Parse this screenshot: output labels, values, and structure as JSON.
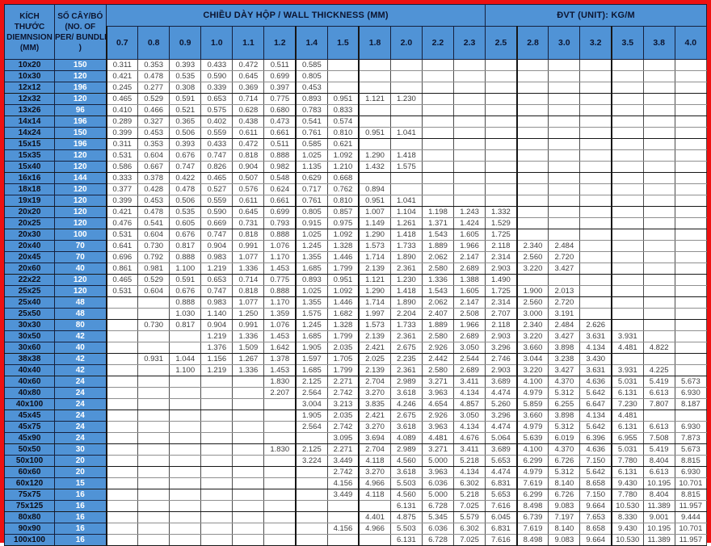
{
  "title": "Steel box tube weight table",
  "colors": {
    "header_blue": "#5093d6",
    "frame_red": "#ee1111",
    "bundle_text": "#ffffff",
    "data_text": "#3c3c3c"
  },
  "header": {
    "dimension_col": {
      "lines": [
        "KÍCH",
        "THƯỚC",
        "DIEMNSION",
        "(MM)"
      ]
    },
    "bundle_col": {
      "lines": [
        "SỐ CÂY/BÓ",
        "(NO. OF",
        "PER/ BUNDLE",
        ")"
      ]
    },
    "wall_thickness_label": "CHIỀU DÀY HỘP / WALL THICKNESS (MM)",
    "unit_label": "ĐVT (UNIT): KG/M",
    "thicknesses": [
      "0.7",
      "0.8",
      "0.9",
      "1.0",
      "1.1",
      "1.2",
      "1.4",
      "1.5",
      "1.8",
      "2.0",
      "2.2",
      "2.3",
      "2.5",
      "2.8",
      "3.0",
      "3.2",
      "3.5",
      "3.8",
      "4.0"
    ]
  },
  "layout": {
    "group_end_rows": [
      2,
      4,
      6,
      9,
      12,
      14,
      18,
      20,
      22,
      25,
      27,
      30,
      33,
      35,
      37,
      39
    ],
    "group_start_cols": [
      0,
      6,
      8,
      13,
      16
    ]
  },
  "rows": [
    {
      "dim": "10x20",
      "bundle": "150",
      "values": [
        "0.311",
        "0.353",
        "0.393",
        "0.433",
        "0.472",
        "0.511",
        "0.585",
        "",
        "",
        "",
        "",
        "",
        "",
        "",
        "",
        "",
        "",
        "",
        ""
      ]
    },
    {
      "dim": "10x30",
      "bundle": "120",
      "values": [
        "0.421",
        "0.478",
        "0.535",
        "0.590",
        "0.645",
        "0.699",
        "0.805",
        "",
        "",
        "",
        "",
        "",
        "",
        "",
        "",
        "",
        "",
        "",
        ""
      ]
    },
    {
      "dim": "12x12",
      "bundle": "196",
      "values": [
        "0.245",
        "0.277",
        "0.308",
        "0.339",
        "0.369",
        "0.397",
        "0.453",
        "",
        "",
        "",
        "",
        "",
        "",
        "",
        "",
        "",
        "",
        "",
        ""
      ]
    },
    {
      "dim": "12x32",
      "bundle": "120",
      "values": [
        "0.465",
        "0.529",
        "0.591",
        "0.653",
        "0.714",
        "0.775",
        "0.893",
        "0.951",
        "1.121",
        "1.230",
        "",
        "",
        "",
        "",
        "",
        "",
        "",
        "",
        ""
      ]
    },
    {
      "dim": "13x26",
      "bundle": "96",
      "values": [
        "0.410",
        "0.466",
        "0.521",
        "0.575",
        "0.628",
        "0.680",
        "0.783",
        "0.833",
        "",
        "",
        "",
        "",
        "",
        "",
        "",
        "",
        "",
        "",
        ""
      ]
    },
    {
      "dim": "14x14",
      "bundle": "196",
      "values": [
        "0.289",
        "0.327",
        "0.365",
        "0.402",
        "0.438",
        "0.473",
        "0.541",
        "0.574",
        "",
        "",
        "",
        "",
        "",
        "",
        "",
        "",
        "",
        "",
        ""
      ]
    },
    {
      "dim": "14x24",
      "bundle": "150",
      "values": [
        "0.399",
        "0.453",
        "0.506",
        "0.559",
        "0.611",
        "0.661",
        "0.761",
        "0.810",
        "0.951",
        "1.041",
        "",
        "",
        "",
        "",
        "",
        "",
        "",
        "",
        ""
      ]
    },
    {
      "dim": "15x15",
      "bundle": "196",
      "values": [
        "0.311",
        "0.353",
        "0.393",
        "0.433",
        "0.472",
        "0.511",
        "0.585",
        "0.621",
        "",
        "",
        "",
        "",
        "",
        "",
        "",
        "",
        "",
        "",
        ""
      ]
    },
    {
      "dim": "15x35",
      "bundle": "120",
      "values": [
        "0.531",
        "0.604",
        "0.676",
        "0.747",
        "0.818",
        "0.888",
        "1.025",
        "1.092",
        "1.290",
        "1.418",
        "",
        "",
        "",
        "",
        "",
        "",
        "",
        "",
        ""
      ]
    },
    {
      "dim": "15x40",
      "bundle": "120",
      "values": [
        "0.586",
        "0.667",
        "0.747",
        "0.826",
        "0.904",
        "0.982",
        "1.135",
        "1.210",
        "1.432",
        "1.575",
        "",
        "",
        "",
        "",
        "",
        "",
        "",
        "",
        ""
      ]
    },
    {
      "dim": "16x16",
      "bundle": "144",
      "values": [
        "0.333",
        "0.378",
        "0.422",
        "0.465",
        "0.507",
        "0.548",
        "0.629",
        "0.668",
        "",
        "",
        "",
        "",
        "",
        "",
        "",
        "",
        "",
        "",
        ""
      ]
    },
    {
      "dim": "18x18",
      "bundle": "120",
      "values": [
        "0.377",
        "0.428",
        "0.478",
        "0.527",
        "0.576",
        "0.624",
        "0.717",
        "0.762",
        "0.894",
        "",
        "",
        "",
        "",
        "",
        "",
        "",
        "",
        "",
        ""
      ]
    },
    {
      "dim": "19x19",
      "bundle": "120",
      "values": [
        "0.399",
        "0.453",
        "0.506",
        "0.559",
        "0.611",
        "0.661",
        "0.761",
        "0.810",
        "0.951",
        "1.041",
        "",
        "",
        "",
        "",
        "",
        "",
        "",
        "",
        ""
      ]
    },
    {
      "dim": "20x20",
      "bundle": "120",
      "values": [
        "0.421",
        "0.478",
        "0.535",
        "0.590",
        "0.645",
        "0.699",
        "0.805",
        "0.857",
        "1.007",
        "1.104",
        "1.198",
        "1.243",
        "1.332",
        "",
        "",
        "",
        "",
        "",
        ""
      ]
    },
    {
      "dim": "20x25",
      "bundle": "120",
      "values": [
        "0.476",
        "0.541",
        "0.605",
        "0.669",
        "0.731",
        "0.793",
        "0.915",
        "0.975",
        "1.149",
        "1.261",
        "1.371",
        "1.424",
        "1.529",
        "",
        "",
        "",
        "",
        "",
        ""
      ]
    },
    {
      "dim": "20x30",
      "bundle": "100",
      "values": [
        "0.531",
        "0.604",
        "0.676",
        "0.747",
        "0.818",
        "0.888",
        "1.025",
        "1.092",
        "1.290",
        "1.418",
        "1.543",
        "1.605",
        "1.725",
        "",
        "",
        "",
        "",
        "",
        ""
      ]
    },
    {
      "dim": "20x40",
      "bundle": "70",
      "values": [
        "0.641",
        "0.730",
        "0.817",
        "0.904",
        "0.991",
        "1.076",
        "1.245",
        "1.328",
        "1.573",
        "1.733",
        "1.889",
        "1.966",
        "2.118",
        "2.340",
        "2.484",
        "",
        "",
        "",
        ""
      ]
    },
    {
      "dim": "20x45",
      "bundle": "70",
      "values": [
        "0.696",
        "0.792",
        "0.888",
        "0.983",
        "1.077",
        "1.170",
        "1.355",
        "1.446",
        "1.714",
        "1.890",
        "2.062",
        "2.147",
        "2.314",
        "2.560",
        "2.720",
        "",
        "",
        "",
        ""
      ]
    },
    {
      "dim": "20x60",
      "bundle": "40",
      "values": [
        "0.861",
        "0.981",
        "1.100",
        "1.219",
        "1.336",
        "1.453",
        "1.685",
        "1.799",
        "2.139",
        "2.361",
        "2.580",
        "2.689",
        "2.903",
        "3.220",
        "3.427",
        "",
        "",
        "",
        ""
      ]
    },
    {
      "dim": "22x22",
      "bundle": "120",
      "values": [
        "0.465",
        "0.529",
        "0.591",
        "0.653",
        "0.714",
        "0.775",
        "0.893",
        "0.951",
        "1.121",
        "1.230",
        "1.336",
        "1.388",
        "1.490",
        "",
        "",
        "",
        "",
        "",
        ""
      ]
    },
    {
      "dim": "25x25",
      "bundle": "120",
      "values": [
        "0.531",
        "0.604",
        "0.676",
        "0.747",
        "0.818",
        "0.888",
        "1.025",
        "1.092",
        "1.290",
        "1.418",
        "1.543",
        "1.605",
        "1.725",
        "1.900",
        "2.013",
        "",
        "",
        "",
        ""
      ]
    },
    {
      "dim": "25x40",
      "bundle": "48",
      "values": [
        "",
        "",
        "0.888",
        "0.983",
        "1.077",
        "1.170",
        "1.355",
        "1.446",
        "1.714",
        "1.890",
        "2.062",
        "2.147",
        "2.314",
        "2.560",
        "2.720",
        "",
        "",
        "",
        ""
      ]
    },
    {
      "dim": "25x50",
      "bundle": "48",
      "values": [
        "",
        "",
        "1.030",
        "1.140",
        "1.250",
        "1.359",
        "1.575",
        "1.682",
        "1.997",
        "2.204",
        "2.407",
        "2.508",
        "2.707",
        "3.000",
        "3.191",
        "",
        "",
        "",
        ""
      ]
    },
    {
      "dim": "30x30",
      "bundle": "80",
      "values": [
        "",
        "0.730",
        "0.817",
        "0.904",
        "0.991",
        "1.076",
        "1.245",
        "1.328",
        "1.573",
        "1.733",
        "1.889",
        "1.966",
        "2.118",
        "2.340",
        "2.484",
        "2.626",
        "",
        "",
        ""
      ]
    },
    {
      "dim": "30x50",
      "bundle": "42",
      "values": [
        "",
        "",
        "",
        "1.219",
        "1.336",
        "1.453",
        "1.685",
        "1.799",
        "2.139",
        "2.361",
        "2.580",
        "2.689",
        "2.903",
        "3.220",
        "3.427",
        "3.631",
        "3.931",
        "",
        ""
      ]
    },
    {
      "dim": "30x60",
      "bundle": "40",
      "values": [
        "",
        "",
        "",
        "1.376",
        "1.509",
        "1.642",
        "1.905",
        "2.035",
        "2.421",
        "2.675",
        "2.926",
        "3.050",
        "3.296",
        "3.660",
        "3.898",
        "4.134",
        "4.481",
        "4.822",
        ""
      ]
    },
    {
      "dim": "38x38",
      "bundle": "42",
      "values": [
        "",
        "0.931",
        "1.044",
        "1.156",
        "1.267",
        "1.378",
        "1.597",
        "1.705",
        "2.025",
        "2.235",
        "2.442",
        "2.544",
        "2.746",
        "3.044",
        "3.238",
        "3.430",
        "",
        "",
        ""
      ]
    },
    {
      "dim": "40x40",
      "bundle": "42",
      "values": [
        "",
        "",
        "1.100",
        "1.219",
        "1.336",
        "1.453",
        "1.685",
        "1.799",
        "2.139",
        "2.361",
        "2.580",
        "2.689",
        "2.903",
        "3.220",
        "3.427",
        "3.631",
        "3.931",
        "4.225",
        ""
      ]
    },
    {
      "dim": "40x60",
      "bundle": "24",
      "values": [
        "",
        "",
        "",
        "",
        "",
        "1.830",
        "2.125",
        "2.271",
        "2.704",
        "2.989",
        "3.271",
        "3.411",
        "3.689",
        "4.100",
        "4.370",
        "4.636",
        "5.031",
        "5.419",
        "5.673"
      ]
    },
    {
      "dim": "40x80",
      "bundle": "24",
      "values": [
        "",
        "",
        "",
        "",
        "",
        "2.207",
        "2.564",
        "2.742",
        "3.270",
        "3.618",
        "3.963",
        "4.134",
        "4.474",
        "4.979",
        "5.312",
        "5.642",
        "6.131",
        "6.613",
        "6.930"
      ]
    },
    {
      "dim": "40x100",
      "bundle": "24",
      "values": [
        "",
        "",
        "",
        "",
        "",
        "",
        "3.004",
        "3.213",
        "3.835",
        "4.246",
        "4.654",
        "4.857",
        "5.260",
        "5.859",
        "6.255",
        "6.647",
        "7.230",
        "7.807",
        "8.187"
      ]
    },
    {
      "dim": "45x45",
      "bundle": "24",
      "values": [
        "",
        "",
        "",
        "",
        "",
        "",
        "1.905",
        "2.035",
        "2.421",
        "2.675",
        "2.926",
        "3.050",
        "3.296",
        "3.660",
        "3.898",
        "4.134",
        "4.481",
        "",
        ""
      ]
    },
    {
      "dim": "45x75",
      "bundle": "24",
      "values": [
        "",
        "",
        "",
        "",
        "",
        "",
        "2.564",
        "2.742",
        "3.270",
        "3.618",
        "3.963",
        "4.134",
        "4.474",
        "4.979",
        "5.312",
        "5.642",
        "6.131",
        "6.613",
        "6.930"
      ]
    },
    {
      "dim": "45x90",
      "bundle": "24",
      "values": [
        "",
        "",
        "",
        "",
        "",
        "",
        "",
        "3.095",
        "3.694",
        "4.089",
        "4.481",
        "4.676",
        "5.064",
        "5.639",
        "6.019",
        "6.396",
        "6.955",
        "7.508",
        "7.873"
      ]
    },
    {
      "dim": "50x50",
      "bundle": "30",
      "values": [
        "",
        "",
        "",
        "",
        "",
        "1.830",
        "2.125",
        "2.271",
        "2.704",
        "2.989",
        "3.271",
        "3.411",
        "3.689",
        "4.100",
        "4.370",
        "4.636",
        "5.031",
        "5.419",
        "5.673"
      ]
    },
    {
      "dim": "50x100",
      "bundle": "20",
      "values": [
        "",
        "",
        "",
        "",
        "",
        "",
        "3.224",
        "3.449",
        "4.118",
        "4.560",
        "5.000",
        "5.218",
        "5.653",
        "6.299",
        "6.726",
        "7.150",
        "7.780",
        "8.404",
        "8.815"
      ]
    },
    {
      "dim": "60x60",
      "bundle": "20",
      "values": [
        "",
        "",
        "",
        "",
        "",
        "",
        "",
        "2.742",
        "3.270",
        "3.618",
        "3.963",
        "4.134",
        "4.474",
        "4.979",
        "5.312",
        "5.642",
        "6.131",
        "6.613",
        "6.930"
      ]
    },
    {
      "dim": "60x120",
      "bundle": "15",
      "values": [
        "",
        "",
        "",
        "",
        "",
        "",
        "",
        "4.156",
        "4.966",
        "5.503",
        "6.036",
        "6.302",
        "6.831",
        "7.619",
        "8.140",
        "8.658",
        "9.430",
        "10.195",
        "10.701"
      ]
    },
    {
      "dim": "75x75",
      "bundle": "16",
      "values": [
        "",
        "",
        "",
        "",
        "",
        "",
        "",
        "3.449",
        "4.118",
        "4.560",
        "5.000",
        "5.218",
        "5.653",
        "6.299",
        "6.726",
        "7.150",
        "7.780",
        "8.404",
        "8.815"
      ]
    },
    {
      "dim": "75x125",
      "bundle": "16",
      "values": [
        "",
        "",
        "",
        "",
        "",
        "",
        "",
        "",
        "",
        "6.131",
        "6.728",
        "7.025",
        "7.616",
        "8.498",
        "9.083",
        "9.664",
        "10.530",
        "11.389",
        "11.957"
      ]
    },
    {
      "dim": "80x80",
      "bundle": "16",
      "values": [
        "",
        "",
        "",
        "",
        "",
        "",
        "",
        "",
        "4.401",
        "4.875",
        "5.345",
        "5.579",
        "6.045",
        "6.739",
        "7.197",
        "7.653",
        "8.330",
        "9.001",
        "9.444"
      ]
    },
    {
      "dim": "90x90",
      "bundle": "16",
      "values": [
        "",
        "",
        "",
        "",
        "",
        "",
        "",
        "4.156",
        "4.966",
        "5.503",
        "6.036",
        "6.302",
        "6.831",
        "7.619",
        "8.140",
        "8.658",
        "9.430",
        "10.195",
        "10.701"
      ]
    },
    {
      "dim": "100x100",
      "bundle": "16",
      "values": [
        "",
        "",
        "",
        "",
        "",
        "",
        "",
        "",
        "",
        "6.131",
        "6.728",
        "7.025",
        "7.616",
        "8.498",
        "9.083",
        "9.664",
        "10.530",
        "11.389",
        "11.957"
      ]
    }
  ]
}
